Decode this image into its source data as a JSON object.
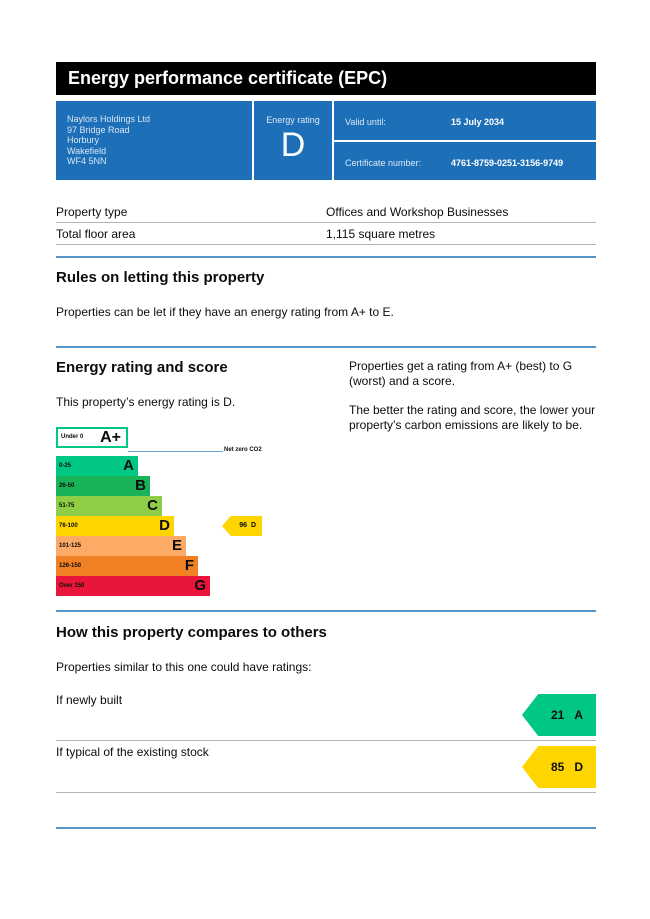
{
  "header": {
    "title": "Energy performance certificate (EPC)"
  },
  "summary": {
    "address": [
      "Naylors Holdings Ltd",
      "97 Bridge Road",
      "Horbury",
      "Wakefield",
      "WF4 5NN"
    ],
    "rating_label": "Energy rating",
    "rating": "D",
    "valid_until_label": "Valid until:",
    "valid_until": "15 July 2034",
    "certificate_number_label": "Certificate number:",
    "certificate_number": "4761-8759-0251-3156-9749"
  },
  "property": {
    "rows": [
      [
        "Property type",
        "Offices and Workshop Businesses"
      ],
      [
        "Total floor area",
        "1,115 square metres"
      ]
    ]
  },
  "letting": {
    "heading": "Rules on letting this property",
    "text": "Properties can be let if they have an energy rating from A+ to E."
  },
  "energy": {
    "heading": "Energy rating and score",
    "text": "This property’s energy rating is D.",
    "info": [
      "Properties get a rating from A+ (best) to G (worst) and a score.",
      "The better the rating and score, the lower your property’s carbon emissions are likely to be."
    ],
    "net_zero_label": "Net zero CO2",
    "bands": [
      {
        "range": "Under 0",
        "letter": "A+"
      },
      {
        "range": "0-25",
        "letter": "A"
      },
      {
        "range": "26-50",
        "letter": "B"
      },
      {
        "range": "51-75",
        "letter": "C"
      },
      {
        "range": "76-100",
        "letter": "D"
      },
      {
        "range": "101-125",
        "letter": "E"
      },
      {
        "range": "126-150",
        "letter": "F"
      },
      {
        "range": "Over 150",
        "letter": "G"
      }
    ],
    "current": {
      "score": 96,
      "rating": "D"
    }
  },
  "compare": {
    "heading": "How this property compares to others",
    "text": "Properties similar to this one could have ratings:",
    "items": [
      {
        "label": "If newly built",
        "score": 21,
        "rating": "A"
      },
      {
        "label": "If typical of the existing stock",
        "score": 85,
        "rating": "D"
      }
    ]
  }
}
